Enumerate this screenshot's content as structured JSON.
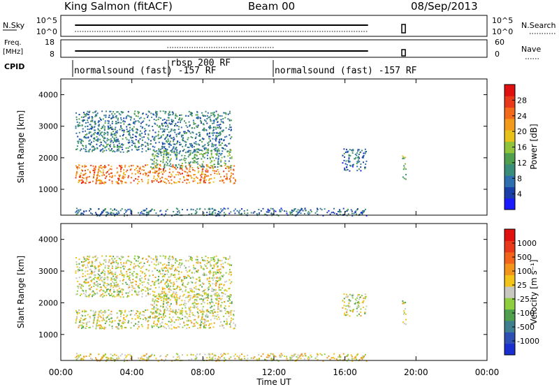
{
  "header": {
    "station": "King Salmon (fitACF)",
    "beam": "Beam 00",
    "date": "08/Sep/2013"
  },
  "noise_panel": {
    "left_label": "N.Sky",
    "left_ticks": [
      "10^5",
      "10^0"
    ],
    "right_label": "N.Search",
    "right_ticks": [
      "10^5",
      "10^0"
    ]
  },
  "freq_panel": {
    "left_label_1": "Freq.",
    "left_label_2": "[MHz]",
    "left_ticks": [
      "18",
      "8"
    ],
    "right_label": "Nave",
    "right_ticks": [
      "60",
      "0"
    ]
  },
  "cpid": {
    "label": "CPID",
    "segments": [
      {
        "text": "normalsound (fast) -157 RF",
        "start_hour": 0.8
      },
      {
        "text": "rbsp 200 RF",
        "start_hour": 6.0
      },
      {
        "text": "normalsound (fast) -157 RF",
        "start_hour": 12.0
      }
    ]
  },
  "colors": {
    "power": [
      "#1a1aff",
      "#1a3fa8",
      "#2f6fb0",
      "#3b8c78",
      "#4f9f4f",
      "#8fc33a",
      "#e6c21a",
      "#f29a1a",
      "#f26a1a",
      "#e83a1a",
      "#e01010"
    ],
    "velocity": [
      "#1a2fd0",
      "#2e50b4",
      "#3f7f8f",
      "#4f9f4f",
      "#8fce3f",
      "#c8c8c0",
      "#f2c41a",
      "#f2951a",
      "#f2641a",
      "#e83a1a",
      "#e01010"
    ]
  },
  "chart_data": [
    {
      "type": "heatmap",
      "name": "power",
      "xlabel": "",
      "ylabel": "Slant Range [km]",
      "xlim": [
        0,
        24
      ],
      "ylim": [
        180,
        4500
      ],
      "yticks": [
        "1000",
        "2000",
        "3000",
        "4000"
      ],
      "colorbar": {
        "label": "Power [dB]",
        "ticks": [
          "4",
          "8",
          "12",
          "16",
          "20",
          "24",
          "28"
        ],
        "range": [
          0,
          32
        ]
      },
      "echo_bands": [
        {
          "t": [
            0.8,
            17.2
          ],
          "range_km": [
            180,
            420
          ],
          "value": 8
        },
        {
          "t": [
            0.8,
            9.8
          ],
          "range_km": [
            1200,
            1800
          ],
          "value": 24
        },
        {
          "t": [
            5.0,
            9.6
          ],
          "range_km": [
            1700,
            2300
          ],
          "value": 12
        },
        {
          "t": [
            0.8,
            9.6
          ],
          "range_km": [
            2200,
            3500
          ],
          "value": 9
        },
        {
          "t": [
            15.8,
            17.2
          ],
          "range_km": [
            1600,
            2300
          ],
          "value": 8
        },
        {
          "t": [
            19.2,
            19.4
          ],
          "range_km": [
            1300,
            2100
          ],
          "value": 14
        }
      ]
    },
    {
      "type": "heatmap",
      "name": "velocity",
      "xlabel": "Time UT",
      "ylabel": "Slant Range [km]",
      "xlim": [
        0,
        24
      ],
      "ylim": [
        180,
        4500
      ],
      "yticks": [
        "1000",
        "2000",
        "3000",
        "4000"
      ],
      "xticks": [
        "00:00",
        "04:00",
        "08:00",
        "12:00",
        "16:00",
        "20:00",
        "00:00"
      ],
      "colorbar": {
        "label": "Velocity [m s⁻¹]",
        "ticks": [
          "1000",
          "500",
          "100",
          "25",
          "-25",
          "-100",
          "-500",
          "-1000"
        ],
        "range": [
          -1200,
          1200
        ]
      },
      "echo_bands": [
        {
          "t": [
            0.8,
            17.2
          ],
          "range_km": [
            180,
            420
          ],
          "value": -80
        },
        {
          "t": [
            0.8,
            9.8
          ],
          "range_km": [
            1200,
            1800
          ],
          "value": 0
        },
        {
          "t": [
            5.0,
            9.6
          ],
          "range_km": [
            1700,
            2300
          ],
          "value": 0
        },
        {
          "t": [
            0.8,
            9.6
          ],
          "range_km": [
            2200,
            3500
          ],
          "value": 10
        },
        {
          "t": [
            15.8,
            17.2
          ],
          "range_km": [
            1600,
            2300
          ],
          "value": 60
        },
        {
          "t": [
            19.2,
            19.4
          ],
          "range_km": [
            1300,
            2100
          ],
          "value": 0
        }
      ]
    }
  ]
}
